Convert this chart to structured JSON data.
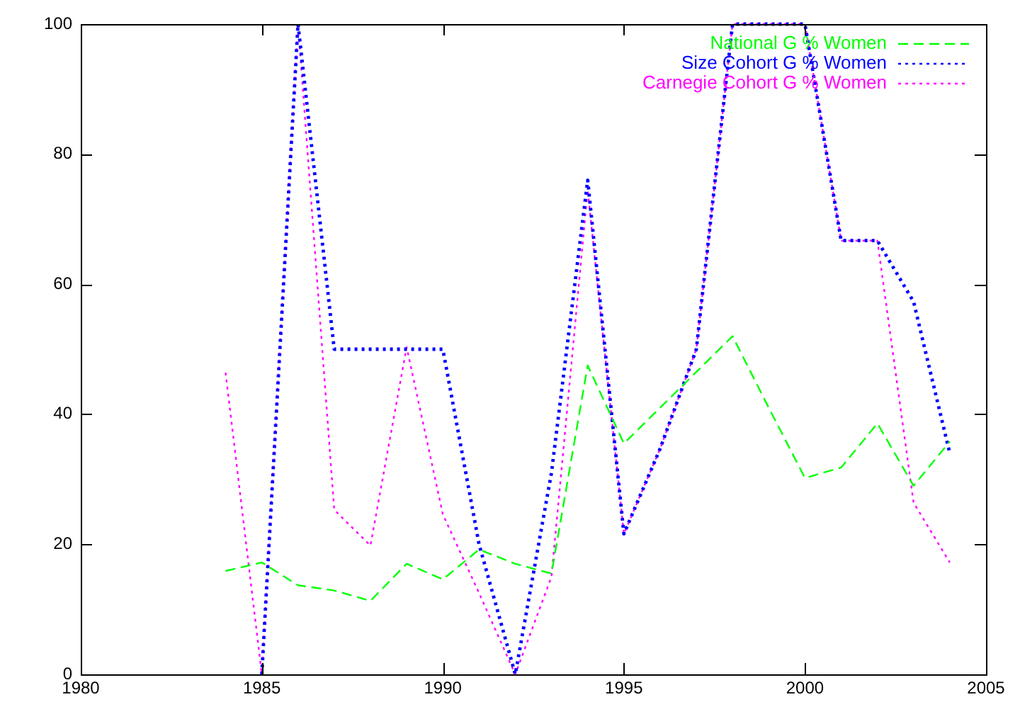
{
  "chart_data": {
    "type": "line",
    "x": [
      1984,
      1985,
      1986,
      1987,
      1988,
      1989,
      1990,
      1991,
      1992,
      1993,
      1994,
      1995,
      1996,
      1997,
      1998,
      1999,
      2000,
      2001,
      2002,
      2003,
      2004
    ],
    "series": [
      {
        "name": "National G % Women",
        "color": "#00ff00",
        "line_style": "dashed",
        "values": [
          15.9,
          17.2,
          13.7,
          12.9,
          11.3,
          17,
          14.6,
          19.2,
          17,
          15.5,
          47.5,
          35.5,
          41,
          46.5,
          52,
          41,
          30.2,
          31.8,
          38.6,
          29,
          35.8
        ]
      },
      {
        "name": "Size Cohort G % Women",
        "color": "#0000ff",
        "line_style": "dotted",
        "values": [
          null,
          0,
          100,
          50,
          50,
          50,
          50,
          20,
          0,
          31,
          76,
          21.6,
          34.7,
          50,
          100,
          100,
          100,
          66.7,
          66.7,
          57.3,
          34
        ]
      },
      {
        "name": "Carnegie Cohort G % Women",
        "color": "#ff00ff",
        "line_style": "dotted",
        "values": [
          46.4,
          0,
          100,
          25.3,
          19.8,
          50.3,
          24.6,
          12.5,
          0,
          15,
          74.5,
          21.6,
          34.7,
          50,
          100,
          100,
          100,
          66.7,
          66.7,
          26.4,
          17.2
        ]
      }
    ],
    "xlim": [
      1980,
      2005
    ],
    "xticks": [
      1980,
      1985,
      1990,
      1995,
      2000,
      2005
    ],
    "ylim": [
      0,
      100
    ],
    "yticks": [
      0,
      20,
      40,
      60,
      80,
      100
    ],
    "legend": "top right",
    "marker": "none"
  }
}
